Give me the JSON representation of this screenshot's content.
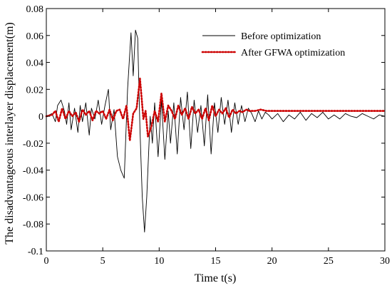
{
  "chart_data": {
    "type": "line",
    "title": "",
    "xlabel": "Time t(s)",
    "ylabel": "The disadvantageous interlayer displacement(m)",
    "xlim": [
      0,
      30
    ],
    "ylim": [
      -0.1,
      0.08
    ],
    "x_ticks": [
      0,
      5,
      10,
      15,
      20,
      25,
      30
    ],
    "x_tick_labels": [
      "0",
      "5",
      "10",
      "15",
      "20",
      "25",
      "30"
    ],
    "y_ticks": [
      -0.1,
      -0.08,
      -0.06,
      -0.04,
      -0.02,
      0,
      0.02,
      0.04,
      0.06,
      0.08
    ],
    "y_tick_labels": [
      "-0.1",
      "-0.08",
      "-0.06",
      "-0.04",
      "-0.02",
      "0",
      "0.02",
      "0.04",
      "0.06",
      "0.08"
    ],
    "grid": false,
    "legend_position": "top-right",
    "series": [
      {
        "name": "Before optimization",
        "color": "#000000",
        "style": "solid",
        "x": [
          0,
          0.5,
          0.8,
          1.0,
          1.3,
          1.6,
          1.8,
          2.0,
          2.2,
          2.5,
          2.8,
          3.0,
          3.2,
          3.5,
          3.8,
          4.0,
          4.3,
          4.6,
          4.9,
          5.2,
          5.5,
          5.7,
          6.0,
          6.3,
          6.6,
          6.9,
          7.2,
          7.5,
          7.7,
          7.9,
          8.1,
          8.3,
          8.5,
          8.7,
          8.9,
          9.0,
          9.2,
          9.4,
          9.6,
          9.9,
          10.2,
          10.5,
          10.8,
          11.0,
          11.3,
          11.6,
          11.9,
          12.2,
          12.5,
          12.8,
          13.1,
          13.4,
          13.7,
          14.0,
          14.3,
          14.6,
          14.9,
          15.2,
          15.5,
          15.8,
          16.1,
          16.4,
          16.7,
          17.0,
          17.3,
          17.6,
          17.9,
          18.2,
          18.5,
          18.8,
          19.1,
          19.4,
          19.7,
          20.0,
          20.5,
          21.0,
          21.5,
          22.0,
          22.5,
          23.0,
          23.5,
          24.0,
          24.5,
          25.0,
          25.5,
          26.0,
          26.5,
          27.0,
          27.5,
          28.0,
          28.5,
          29.0,
          29.5,
          30.0
        ],
        "y": [
          0,
          0.002,
          -0.004,
          0.008,
          0.012,
          0.004,
          -0.006,
          0.01,
          -0.01,
          0.006,
          -0.012,
          0.008,
          -0.004,
          0.01,
          -0.014,
          0.006,
          -0.002,
          0.012,
          -0.006,
          0.008,
          0.02,
          -0.01,
          0.005,
          -0.03,
          -0.04,
          -0.046,
          0.02,
          0.062,
          0.03,
          0.064,
          0.058,
          -0.01,
          -0.06,
          -0.086,
          -0.06,
          -0.04,
          0.0,
          -0.02,
          0.01,
          -0.03,
          0.012,
          -0.032,
          0.004,
          -0.02,
          0.01,
          -0.028,
          0.014,
          -0.01,
          0.018,
          -0.024,
          0.012,
          -0.012,
          0.008,
          -0.022,
          0.016,
          -0.028,
          0.01,
          -0.012,
          0.014,
          -0.006,
          0.012,
          -0.012,
          0.01,
          -0.006,
          0.008,
          -0.004,
          0.006,
          0.002,
          -0.004,
          0.004,
          -0.002,
          0.003,
          0.001,
          -0.002,
          0.002,
          -0.004,
          0.001,
          -0.002,
          0.003,
          -0.003,
          0.002,
          -0.001,
          0.003,
          -0.002,
          0.001,
          -0.002,
          0.002,
          0.0,
          -0.001,
          0.002,
          0.0,
          -0.002,
          0.001,
          0.0
        ]
      },
      {
        "name": "After GFWA optimization",
        "color": "#cc0000",
        "style": "dotted",
        "x": [
          0,
          0.5,
          0.8,
          1.1,
          1.4,
          1.7,
          2.0,
          2.3,
          2.6,
          2.9,
          3.2,
          3.5,
          3.8,
          4.1,
          4.4,
          4.7,
          5.0,
          5.3,
          5.6,
          5.9,
          6.2,
          6.5,
          6.8,
          7.1,
          7.4,
          7.7,
          8.0,
          8.3,
          8.6,
          8.8,
          9.0,
          9.3,
          9.6,
          9.9,
          10.2,
          10.5,
          10.8,
          11.1,
          11.4,
          11.7,
          12.0,
          12.3,
          12.6,
          12.9,
          13.2,
          13.5,
          13.8,
          14.1,
          14.4,
          14.7,
          15.0,
          15.3,
          15.6,
          15.9,
          16.2,
          16.5,
          16.8,
          17.1,
          17.4,
          17.7,
          18.0,
          18.5,
          19.0,
          19.5,
          20.0,
          21.0,
          22.0,
          23.0,
          24.0,
          25.0,
          26.0,
          27.0,
          28.0,
          29.0,
          30.0
        ],
        "y": [
          0,
          0.001,
          0.004,
          -0.004,
          0.006,
          -0.002,
          0.004,
          0.0,
          0.003,
          -0.004,
          0.005,
          0.001,
          0.004,
          -0.003,
          0.004,
          0.002,
          0.004,
          -0.002,
          0.005,
          -0.003,
          0.004,
          0.005,
          -0.002,
          0.008,
          -0.018,
          0.002,
          0.006,
          0.028,
          -0.002,
          0.004,
          -0.015,
          -0.008,
          0.004,
          -0.004,
          0.017,
          -0.004,
          0.008,
          0.004,
          -0.002,
          0.008,
          0.001,
          0.006,
          -0.002,
          0.007,
          0.002,
          0.005,
          -0.002,
          0.006,
          -0.003,
          0.008,
          0.0,
          0.005,
          0.002,
          0.006,
          -0.001,
          0.005,
          0.002,
          0.004,
          0.003,
          0.005,
          0.004,
          0.004,
          0.005,
          0.004,
          0.004,
          0.004,
          0.004,
          0.004,
          0.004,
          0.004,
          0.004,
          0.004,
          0.004,
          0.004,
          0.004
        ]
      }
    ]
  }
}
